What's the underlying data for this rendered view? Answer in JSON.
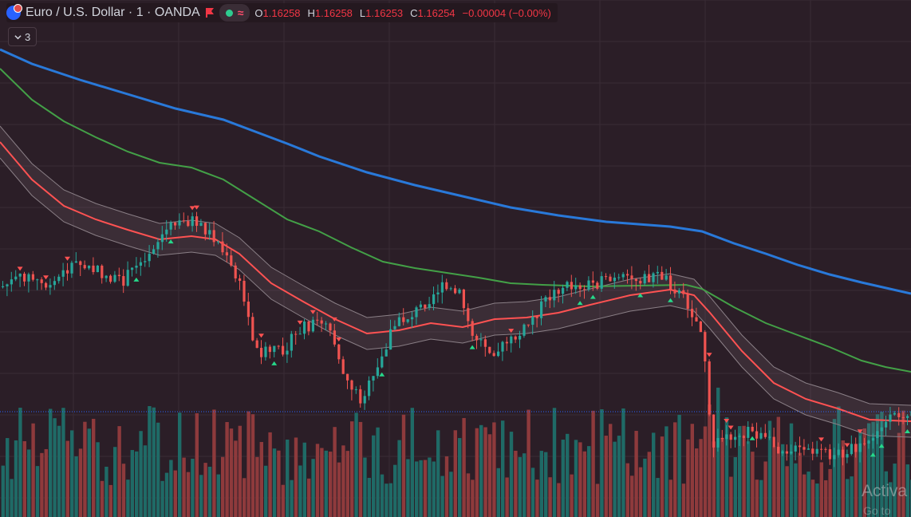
{
  "symbol": {
    "title": "Euro / U.S. Dollar · 1 · OANDA",
    "icon": "eurusd-flag-icon",
    "flag_icon": "flag-icon"
  },
  "toggle": {
    "dot_icon": "eye-dot-icon",
    "wave_icon": "wave-icon",
    "wave_glyph": "≈"
  },
  "ohlc": {
    "o_label": "O",
    "o": "1.16258",
    "h_label": "H",
    "h": "1.16258",
    "l_label": "L",
    "l": "1.16253",
    "c_label": "C",
    "c": "1.16254",
    "change": "−0.00004 (−0.00%)"
  },
  "indicators_button": {
    "count": "3"
  },
  "watermark": {
    "line1": "Activa",
    "line2": "Go to"
  },
  "colors": {
    "background": "#2b1e27",
    "grid": "#3a2c35",
    "up_candle": "#26a69a",
    "down_candle": "#ef5350",
    "up_volume": "#1f6a66",
    "down_volume": "#8e3a3c",
    "ma_fast": "#ff5252",
    "ma_mid": "#43a047",
    "ma_slow": "#2979d9",
    "band": "#8a7f86",
    "signal_up": "#26d98a",
    "signal_down": "#ff5252",
    "price_line": "#2962ff"
  }
}
